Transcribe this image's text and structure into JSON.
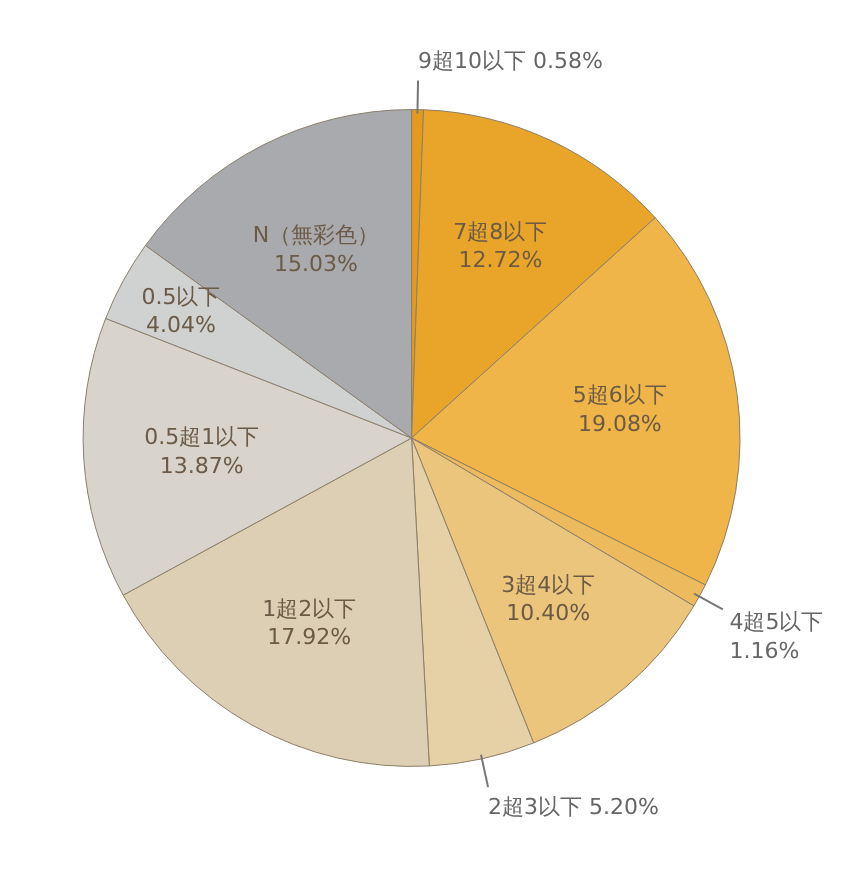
{
  "chart_data": {
    "type": "pie",
    "categories": [
      "9超10以下",
      "7超8以下",
      "5超6以下",
      "4超5以下",
      "3超4以下",
      "2超3以下",
      "1超2以下",
      "0.5超1以下",
      "0.5以下",
      "N（無彩色）"
    ],
    "values": [
      0.58,
      12.72,
      19.08,
      1.16,
      10.4,
      5.2,
      17.92,
      13.87,
      4.04,
      15.03
    ],
    "value_labels": [
      "0.58%",
      "12.72%",
      "19.08%",
      "1.16%",
      "10.40%",
      "5.20%",
      "17.92%",
      "13.87%",
      "4.04%",
      "15.03%"
    ],
    "colors": [
      "#e49a1c",
      "#e9a52a",
      "#efb548",
      "#edbb5e",
      "#ecc57c",
      "#e6d0a6",
      "#ddcfb3",
      "#d8d4cc",
      "#d0d1d1",
      "#a8aaae"
    ]
  }
}
